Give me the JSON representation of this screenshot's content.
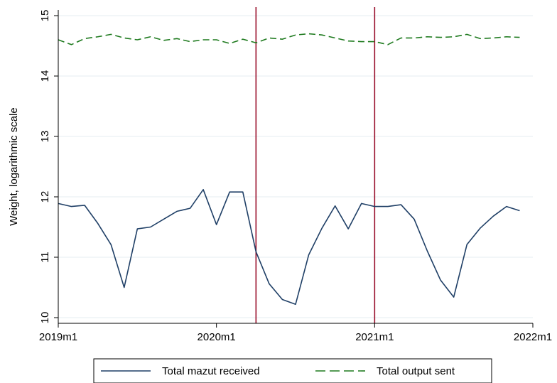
{
  "chart_data": {
    "type": "line",
    "ylabel": "Weight, logarithmic scale",
    "xlabel": "",
    "x_ticks": [
      "2019m1",
      "2020m1",
      "2021m1",
      "2022m1"
    ],
    "y_ticks": [
      "10",
      "11",
      "12",
      "13",
      "14",
      "15"
    ],
    "ylim": [
      10,
      15
    ],
    "xlim": [
      "2019m1",
      "2022m1"
    ],
    "grid": true,
    "legend_position": "bottom",
    "vertical_lines": [
      "2020m4",
      "2021m1"
    ],
    "x": [
      "2019m1",
      "2019m2",
      "2019m3",
      "2019m4",
      "2019m5",
      "2019m6",
      "2019m7",
      "2019m8",
      "2019m9",
      "2019m10",
      "2019m11",
      "2019m12",
      "2020m1",
      "2020m2",
      "2020m3",
      "2020m4",
      "2020m5",
      "2020m6",
      "2020m7",
      "2020m8",
      "2020m9",
      "2020m10",
      "2020m11",
      "2020m12",
      "2021m1",
      "2021m2",
      "2021m3",
      "2021m4",
      "2021m5",
      "2021m6",
      "2021m7",
      "2021m8",
      "2021m9",
      "2021m10",
      "2021m11",
      "2021m12"
    ],
    "series": [
      {
        "name": "Total mazut received",
        "color": "#1f3f66",
        "style": "solid",
        "values": [
          11.89,
          11.84,
          11.86,
          11.56,
          11.21,
          10.5,
          11.47,
          11.5,
          11.63,
          11.76,
          11.81,
          12.12,
          11.54,
          12.08,
          12.08,
          11.09,
          10.56,
          10.3,
          10.22,
          11.04,
          11.48,
          11.85,
          11.47,
          11.89,
          11.84,
          11.84,
          11.87,
          11.63,
          11.1,
          10.62,
          10.34,
          11.21,
          11.48,
          11.68,
          11.84,
          11.77
        ]
      },
      {
        "name": "Total output sent",
        "color": "#1e7a1e",
        "style": "dashed",
        "values": [
          14.6,
          14.52,
          14.62,
          14.65,
          14.69,
          14.63,
          14.6,
          14.65,
          14.59,
          14.62,
          14.57,
          14.6,
          14.6,
          14.54,
          14.61,
          14.55,
          14.63,
          14.61,
          14.68,
          14.7,
          14.68,
          14.63,
          14.58,
          14.57,
          14.57,
          14.52,
          14.63,
          14.63,
          14.65,
          14.64,
          14.65,
          14.69,
          14.62,
          14.63,
          14.65,
          14.64
        ]
      }
    ],
    "vline_color": "#990f2b",
    "grid_color": "#e6eef0"
  }
}
